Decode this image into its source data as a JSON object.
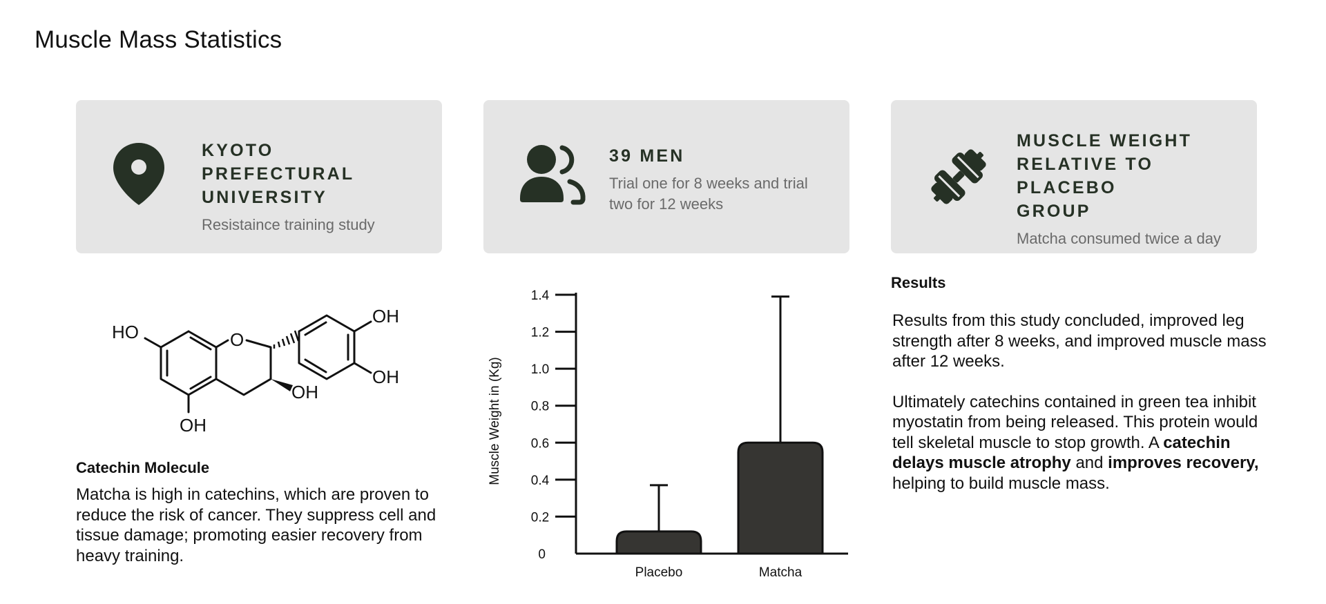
{
  "page": {
    "title": "Muscle Mass Statistics"
  },
  "colors": {
    "card_bg": "#e5e5e5",
    "icon": "#263125",
    "bar": "#363532"
  },
  "cards": [
    {
      "icon": "map-pin-icon",
      "title_lines": [
        "KYOTO PREFECTURAL",
        "UNIVERSITY"
      ],
      "subtitle": "Resistaince training study"
    },
    {
      "icon": "users-icon",
      "title_lines": [
        "39 MEN"
      ],
      "subtitle": "Trial one for 8 weeks and trial two for 12 weeks"
    },
    {
      "icon": "dumbbell-icon",
      "title_lines": [
        "MUSCLE WEIGHT",
        "RELATIVE TO PLACEBO",
        "GROUP"
      ],
      "subtitle": "Matcha consumed twice a day"
    }
  ],
  "molecule": {
    "icon": "catechin-structure",
    "labels": {
      "ho_left": "HO",
      "o_ring": "O",
      "oh_top": "OH",
      "oh_right": "OH",
      "oh_mid": "OH",
      "oh_bottom": "OH"
    }
  },
  "catechin": {
    "heading": "Catechin Molecule",
    "text": "Matcha is high in catechins, which are proven to reduce the risk of cancer. They suppress cell and tissue damage; promoting easier recovery from heavy training."
  },
  "results": {
    "heading": "Results",
    "paragraph1": "Results from this study concluded, improved leg strength after 8 weeks, and improved muscle mass after 12 weeks.",
    "paragraph2_start": "Ultimately catechins contained in green tea inhibit myostatin from being released. This protein would tell skeletal muscle to stop growth. A ",
    "paragraph2_bold1": "catechin delays muscle atrophy",
    "paragraph2_mid": " and ",
    "paragraph2_bold2": "improves recovery,",
    "paragraph2_end": " helping to build muscle mass."
  },
  "chart_data": {
    "type": "bar",
    "categories": [
      "Placebo",
      "Matcha"
    ],
    "values": [
      0.12,
      0.6
    ],
    "error_upper": [
      0.37,
      1.39
    ],
    "ylabel": "Muscle Weight in (Kg)",
    "xlabel": "",
    "ylim": [
      0,
      1.4
    ],
    "yticks": [
      0,
      0.2,
      0.4,
      0.6,
      0.8,
      1.0,
      1.2,
      1.4
    ],
    "ytick_labels": [
      "0",
      "0.2",
      "0.4",
      "0.6",
      "0.8",
      "1.0",
      "1.2",
      "1.4"
    ],
    "grid": false,
    "legend": "none"
  }
}
